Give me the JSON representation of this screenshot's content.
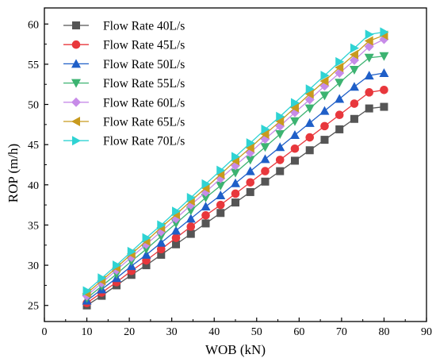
{
  "chart_data": {
    "type": "line",
    "xlabel": "WOB (kN)",
    "ylabel": "ROP (m/h)",
    "xlim": [
      0,
      90
    ],
    "ylim": [
      23,
      62
    ],
    "xticks": [
      0,
      10,
      20,
      30,
      40,
      50,
      60,
      70,
      80,
      90
    ],
    "yticks": [
      25,
      30,
      35,
      40,
      45,
      50,
      55,
      60
    ],
    "grid": false,
    "legend_position": "top-left",
    "x": [
      10,
      13.5,
      17,
      20.5,
      24,
      27.5,
      31,
      34.5,
      38,
      41.5,
      45,
      48.5,
      52,
      55.5,
      59,
      62.5,
      66,
      69.5,
      73,
      76.5,
      80
    ],
    "series": [
      {
        "name": "Flow Rate 40L/s",
        "color": "#555555",
        "marker": "square",
        "values": [
          25.0,
          26.2,
          27.5,
          28.8,
          30.0,
          31.3,
          32.6,
          33.9,
          35.2,
          36.5,
          37.8,
          39.1,
          40.4,
          41.7,
          43.0,
          44.3,
          45.6,
          46.9,
          48.2,
          49.5,
          49.7
        ]
      },
      {
        "name": "Flow Rate 45L/s",
        "color": "#e8373c",
        "marker": "circle",
        "values": [
          25.3,
          26.6,
          27.9,
          29.3,
          30.6,
          32.0,
          33.4,
          34.8,
          36.2,
          37.5,
          38.9,
          40.3,
          41.7,
          43.1,
          44.5,
          45.9,
          47.3,
          48.7,
          50.1,
          51.5,
          51.8
        ]
      },
      {
        "name": "Flow Rate 50L/s",
        "color": "#1f5fc8",
        "marker": "triangle-up",
        "values": [
          25.6,
          27.0,
          28.4,
          29.9,
          31.3,
          32.8,
          34.3,
          35.8,
          37.3,
          38.7,
          40.2,
          41.7,
          43.2,
          44.7,
          46.2,
          47.7,
          49.2,
          50.7,
          52.2,
          53.6,
          53.9
        ]
      },
      {
        "name": "Flow Rate 55L/s",
        "color": "#3cb371",
        "marker": "triangle-down",
        "values": [
          25.9,
          27.4,
          28.9,
          30.5,
          32.0,
          33.6,
          35.2,
          36.8,
          38.4,
          39.9,
          41.5,
          43.1,
          44.7,
          46.3,
          47.9,
          49.5,
          51.1,
          52.7,
          54.3,
          55.8,
          56.0
        ]
      },
      {
        "name": "Flow Rate 60L/s",
        "color": "#c78be8",
        "marker": "diamond",
        "values": [
          26.2,
          27.8,
          29.4,
          31.0,
          32.6,
          34.2,
          35.8,
          37.5,
          39.1,
          40.8,
          42.4,
          44.0,
          45.7,
          47.3,
          49.0,
          50.6,
          52.3,
          53.9,
          55.5,
          57.2,
          58.1
        ]
      },
      {
        "name": "Flow Rate 65L/s",
        "color": "#c89a1e",
        "marker": "triangle-left",
        "values": [
          26.5,
          28.1,
          29.7,
          31.4,
          33.0,
          34.7,
          36.3,
          38.0,
          39.6,
          41.3,
          43.0,
          44.6,
          46.3,
          47.9,
          49.6,
          51.3,
          52.9,
          54.6,
          56.2,
          57.9,
          58.6
        ]
      },
      {
        "name": "Flow Rate 70L/s",
        "color": "#2fd3d3",
        "marker": "triangle-right",
        "values": [
          26.8,
          28.4,
          30.0,
          31.7,
          33.4,
          35.0,
          36.7,
          38.4,
          40.1,
          41.8,
          43.5,
          45.2,
          46.9,
          48.5,
          50.2,
          51.9,
          53.6,
          55.3,
          57.0,
          58.7,
          59.0
        ]
      }
    ]
  }
}
